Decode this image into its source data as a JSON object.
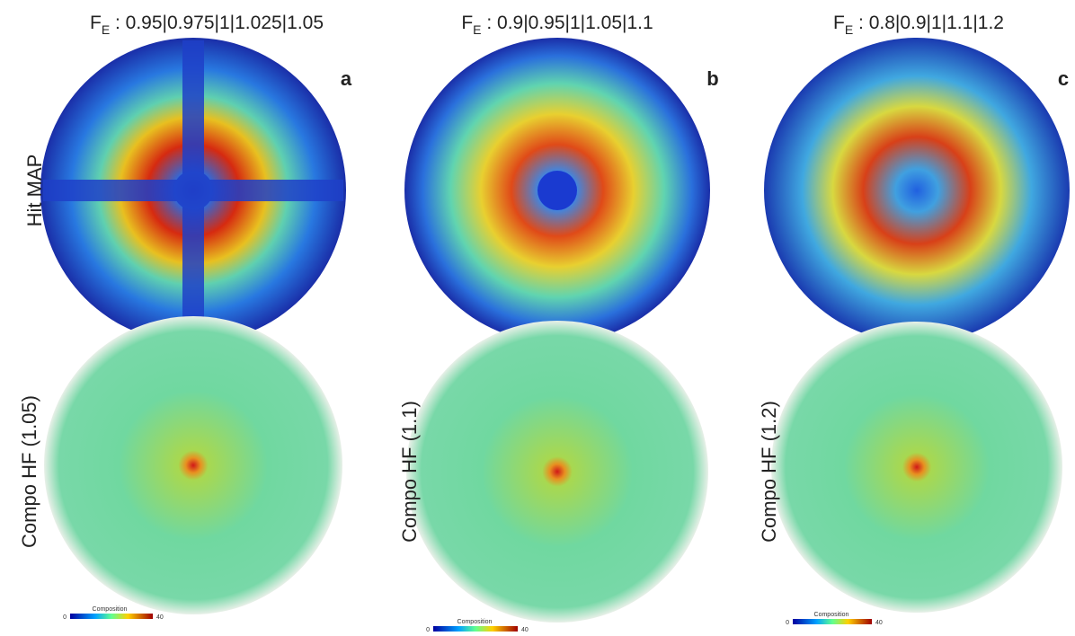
{
  "row_label": "Hit MAP",
  "columns": [
    {
      "title": {
        "symbol": "F",
        "subscript": "E",
        "text": " : 0.95|0.975|1|1.025|1.05"
      },
      "panel": "a",
      "compo_label": "Compo HF (1.05)",
      "colorbar": {
        "title": "Composition",
        "min": 0,
        "max": 40
      }
    },
    {
      "title": {
        "symbol": "F",
        "subscript": "E",
        "text": " : 0.9|0.95|1|1.05|1.1"
      },
      "panel": "b",
      "compo_label": "Compo HF (1.1)",
      "colorbar": {
        "title": "Composition",
        "min": 0,
        "max": 40
      }
    },
    {
      "title": {
        "symbol": "F",
        "subscript": "E",
        "text": " : 0.8|0.9|1|1.1|1.2"
      },
      "panel": "c",
      "compo_label": "Compo HF (1.2)",
      "colorbar": {
        "title": "Composition",
        "min": 0,
        "max": 40
      }
    }
  ]
}
